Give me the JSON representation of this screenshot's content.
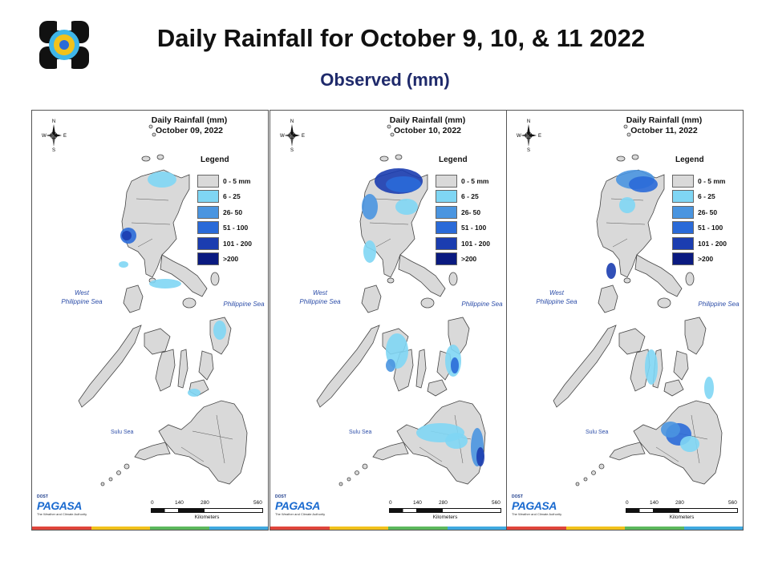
{
  "header": {
    "title": "Daily Rainfall for October 9, 10, & 11 2022",
    "subtitle": "Observed (mm)"
  },
  "legend": {
    "title": "Legend",
    "classes": [
      {
        "label": "0 - 5 mm",
        "color": "#d9d9d9"
      },
      {
        "label": "6 - 25",
        "color": "#7fd6f4"
      },
      {
        "label": "26- 50",
        "color": "#4a95e0"
      },
      {
        "label": "51 - 100",
        "color": "#2a6ad8"
      },
      {
        "label": "101 - 200",
        "color": "#1b3db0"
      },
      {
        "label": ">200",
        "color": "#0a1a80"
      }
    ]
  },
  "maps": [
    {
      "title_line1": "Daily Rainfall (mm)",
      "title_line2": "October 09, 2022",
      "legend_labels": [
        "0 - 5 mm",
        "6 - 25",
        "26- 50",
        "51 - 100",
        "101 - 200",
        ">200"
      ]
    },
    {
      "title_line1": "Daily Rainfall (mm)",
      "title_line2": "October 10, 2022",
      "legend_labels": [
        "0 - 5 mm",
        "6 - 25",
        "26- 50",
        "51 - 100",
        "101 - 200",
        ">200"
      ]
    },
    {
      "title_line1": "Daily Rainfall (mm)",
      "title_line2": "October 11, 2022",
      "legend_labels": [
        "0 - 5 mm",
        "6 - 25",
        "26- 50",
        "51 - 100",
        "101 - 200",
        ">200"
      ]
    }
  ],
  "map_labels": {
    "west_sea_1": "West",
    "west_sea_2": "Philippine Sea",
    "east_sea": "Philippine Sea",
    "sulu_sea": "Sulu Sea",
    "scale_ticks": [
      "0",
      "140",
      "280",
      "560"
    ],
    "scale_unit": "Kilometers",
    "compass_n": "N",
    "compass_s": "S",
    "compass_e": "E",
    "compass_w": "W"
  },
  "branding": {
    "agency": "PAGASA",
    "dost": "DOST",
    "tagline": "The Weather and Climate Authority"
  },
  "colors": {
    "land": "#d9d9d9",
    "light_rain": "#7fd6f4",
    "moderate": "#4a95e0",
    "heavy": "#2a6ad8",
    "very_heavy": "#1b3db0",
    "title_blue": "#1f2a6b",
    "sea_label": "#2c4da8"
  }
}
